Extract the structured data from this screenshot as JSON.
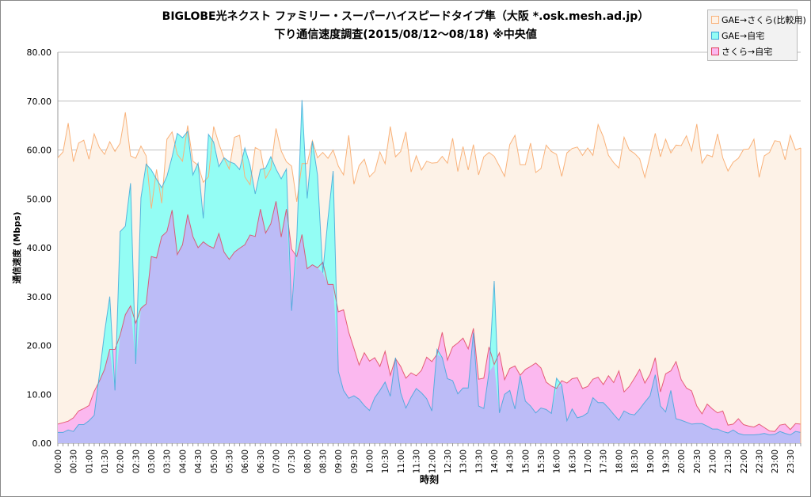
{
  "chart_data": {
    "type": "area",
    "title": "BIGLOBE光ネクスト ファミリー・スーパーハイスピードタイプ隼（大阪 *.osk.mesh.ad.jp）",
    "subtitle": "下り通信速度調査(2015/08/12～08/18) ※中央値",
    "xlabel": "時刻",
    "ylabel": "通信速度 (Mbps)",
    "ylim": [
      0,
      80
    ],
    "y_ticks": [
      "0.00",
      "10.00",
      "20.00",
      "30.00",
      "40.00",
      "50.00",
      "60.00",
      "70.00",
      "80.00"
    ],
    "x_tick_labels": [
      "00:00",
      "00:30",
      "01:00",
      "01:30",
      "02:00",
      "02:30",
      "03:00",
      "03:30",
      "04:00",
      "04:30",
      "05:00",
      "05:30",
      "06:00",
      "06:30",
      "07:00",
      "07:30",
      "08:00",
      "08:30",
      "09:00",
      "09:30",
      "10:00",
      "10:30",
      "11:00",
      "11:30",
      "12:00",
      "12:30",
      "13:00",
      "13:30",
      "14:00",
      "14:30",
      "15:00",
      "15:30",
      "16:00",
      "16:30",
      "17:00",
      "17:30",
      "18:00",
      "18:30",
      "19:00",
      "19:30",
      "20:00",
      "20:30",
      "21:00",
      "21:30",
      "22:00",
      "22:30",
      "23:00",
      "23:30"
    ],
    "grid": true,
    "legend_position": "top-right",
    "series": [
      {
        "name": "GAE→さくら(比較用)",
        "color": "#f9b27a",
        "fill": "#fdf2e7",
        "values": [
          58.4,
          59.6,
          65.5,
          57.6,
          61.4,
          62,
          58.1,
          63.3,
          60.5,
          59.1,
          61.7,
          59.7,
          61.4,
          67.7,
          58.8,
          58.3,
          60.8,
          58.8,
          48,
          56,
          49.1,
          62.2,
          63.7,
          59.1,
          57.7,
          65,
          57.7,
          56.9,
          53.4,
          54.5,
          64.8,
          61.3,
          58.3,
          56.1,
          62.6,
          63,
          54.5,
          52.9,
          60.5,
          59.9,
          54.2,
          56.1,
          64.4,
          59.8,
          57.6,
          56.7,
          49.4,
          57.2,
          57.2,
          61.9,
          58.4,
          59.5,
          58.3,
          60,
          56.7,
          54.9,
          63,
          53,
          56.8,
          58.1,
          54.5,
          55.6,
          59.6,
          57.2,
          64.8,
          58.6,
          59.7,
          63.7,
          55.5,
          58.8,
          55.9,
          57.7,
          57.3,
          57.4,
          58.7,
          57.3,
          62.4,
          55.6,
          60.7,
          55.9,
          61.1,
          54.9,
          58.6,
          59.5,
          58.7,
          56.7,
          54.6,
          61.1,
          63,
          57,
          57,
          61.4,
          55.4,
          56.2,
          61,
          59.7,
          59.1,
          54.6,
          59.4,
          60.3,
          60.6,
          58.9,
          60.4,
          58.9,
          65.2,
          62.7,
          58.9,
          57.4,
          56.3,
          62.6,
          60,
          59.3,
          58.2,
          54.4,
          58.8,
          63.4,
          58.6,
          62.2,
          59.4,
          61,
          60.9,
          62.9,
          59.8,
          65.3,
          57.3,
          59,
          58.6,
          63.3,
          58.4,
          55.7,
          57.5,
          58.3,
          60.1,
          60.2,
          62.2,
          54.4,
          58.8,
          59.5,
          61.9,
          61.7,
          58,
          63,
          60,
          60.4
        ]
      },
      {
        "name": "GAE→自宅",
        "color": "#3aa4d8",
        "fill": "#93fdf4",
        "values": [
          2.2,
          2.2,
          2.7,
          2.4,
          3.8,
          3.8,
          4.6,
          5.7,
          14,
          22.7,
          30,
          10.8,
          43.3,
          44.4,
          53.2,
          16.2,
          50.2,
          57.1,
          55.9,
          54,
          52.3,
          54.6,
          58.6,
          63.4,
          62.5,
          63.8,
          54.9,
          57.3,
          46,
          63.2,
          61.6,
          56.6,
          58.4,
          57.6,
          57.2,
          56,
          60.4,
          56.9,
          51,
          56,
          56.3,
          58.6,
          56.1,
          54.1,
          56.1,
          27.1,
          42,
          70.2,
          50.1,
          61.8,
          54.8,
          34.9,
          45.9,
          55.7,
          14.7,
          10.8,
          9.2,
          9.7,
          9,
          7.7,
          6.7,
          9.3,
          10.8,
          12.5,
          9.6,
          17.5,
          10.3,
          7.2,
          9.4,
          11.2,
          10.3,
          9.1,
          6.6,
          19.2,
          17.5,
          13.2,
          12.8,
          10.1,
          11.3,
          11.3,
          22.6,
          7.6,
          7.1,
          14.5,
          33.2,
          6.2,
          10,
          10.8,
          7,
          13.8,
          8.6,
          7.6,
          6.2,
          7.2,
          6.9,
          6.1,
          13.3,
          11.9,
          4.6,
          7,
          5.2,
          5.5,
          6.2,
          9.3,
          8.3,
          8.3,
          7.2,
          5.9,
          4.7,
          6.6,
          6,
          5.8,
          7,
          8.4,
          9.7,
          14,
          7.6,
          6.4,
          10.8,
          5,
          4.7,
          4.3,
          3.9,
          4,
          4,
          3.5,
          2.9,
          2.9,
          2.4,
          2.1,
          2.7,
          2,
          1.7,
          1.7,
          1.7,
          1.8,
          2,
          1.7,
          1.8,
          2.4,
          2,
          1.7,
          2.4,
          2.2
        ]
      },
      {
        "name": "さくら→自宅",
        "color": "#e0405a",
        "fill": "#fbb8ef",
        "values": [
          3.9,
          4.2,
          4.5,
          5.2,
          6.6,
          7.1,
          7.7,
          10.6,
          12.7,
          15.1,
          19.2,
          19.2,
          22.1,
          26.3,
          28.1,
          24.6,
          27.6,
          28.5,
          38.2,
          37.9,
          42.3,
          43.3,
          47.7,
          38.6,
          40.6,
          46.8,
          42.3,
          40,
          41.2,
          40.4,
          39.9,
          42.9,
          39.1,
          37.6,
          39.1,
          39.9,
          40.6,
          42.6,
          42.3,
          47.9,
          43,
          44.9,
          49.5,
          42.2,
          47.9,
          39.7,
          38.2,
          42.7,
          35.7,
          36.5,
          35.9,
          37,
          32.5,
          32.5,
          26.9,
          27.3,
          22.7,
          19.4,
          16,
          18.5,
          16.8,
          17.5,
          15.7,
          18.8,
          13.9,
          17.3,
          15.7,
          13.3,
          14.4,
          13.8,
          14.9,
          17.6,
          16.7,
          18.2,
          22.7,
          17,
          19.7,
          20.5,
          21.5,
          19.3,
          23.5,
          13.1,
          13.3,
          19.7,
          16.1,
          18.5,
          13,
          15.3,
          15.8,
          13.9,
          15.1,
          15.7,
          16.4,
          15.4,
          12.5,
          11.7,
          11.2,
          12.8,
          12.3,
          13.2,
          13.4,
          11.2,
          11.6,
          13.1,
          13.5,
          12,
          13.8,
          12.4,
          14.8,
          10.5,
          11.6,
          13.3,
          15.1,
          12.3,
          14.1,
          17.5,
          10.5,
          14.2,
          14.8,
          16.7,
          13,
          11.3,
          10.7,
          7.6,
          6,
          8,
          7,
          6.2,
          6.6,
          3.7,
          3.9,
          5,
          3.8,
          3.5,
          3.3,
          3.9,
          3.2,
          2.5,
          2.4,
          3.7,
          3.9,
          2.8,
          4,
          3.9
        ]
      }
    ],
    "overlap_fill": "#bcbcf7"
  }
}
